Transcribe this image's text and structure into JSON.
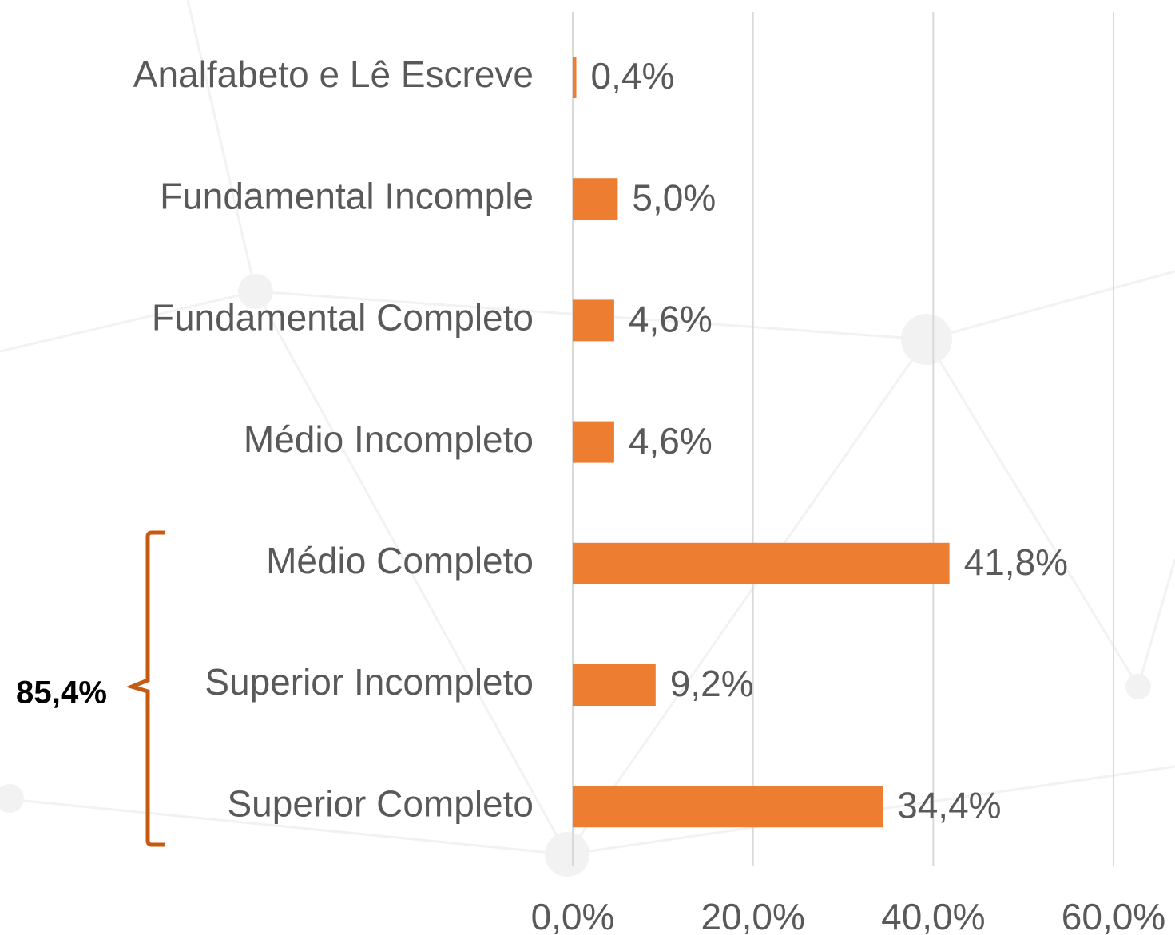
{
  "chart_data": {
    "type": "bar",
    "orientation": "horizontal",
    "categories": [
      "Analfabeto e Lê Escreve",
      "Fundamental Incomple",
      "Fundamental Completo",
      "Médio Incompleto",
      "Médio Completo",
      "Superior Incompleto",
      "Superior Completo"
    ],
    "values": [
      0.4,
      5.0,
      4.6,
      4.6,
      41.8,
      9.2,
      34.4
    ],
    "value_labels": [
      "0,4%",
      "5,0%",
      "4,6%",
      "4,6%",
      "41,8%",
      "9,2%",
      "34,4%"
    ],
    "color": "#ed7d31",
    "xlim": [
      0,
      60
    ],
    "xticks": [
      {
        "value": 0,
        "label": "0,0%"
      },
      {
        "value": 20,
        "label": "20,0%"
      },
      {
        "value": 40,
        "label": "40,0%"
      },
      {
        "value": 60,
        "label": "60,0%"
      }
    ],
    "grid": true,
    "annotation": "85,4%"
  }
}
